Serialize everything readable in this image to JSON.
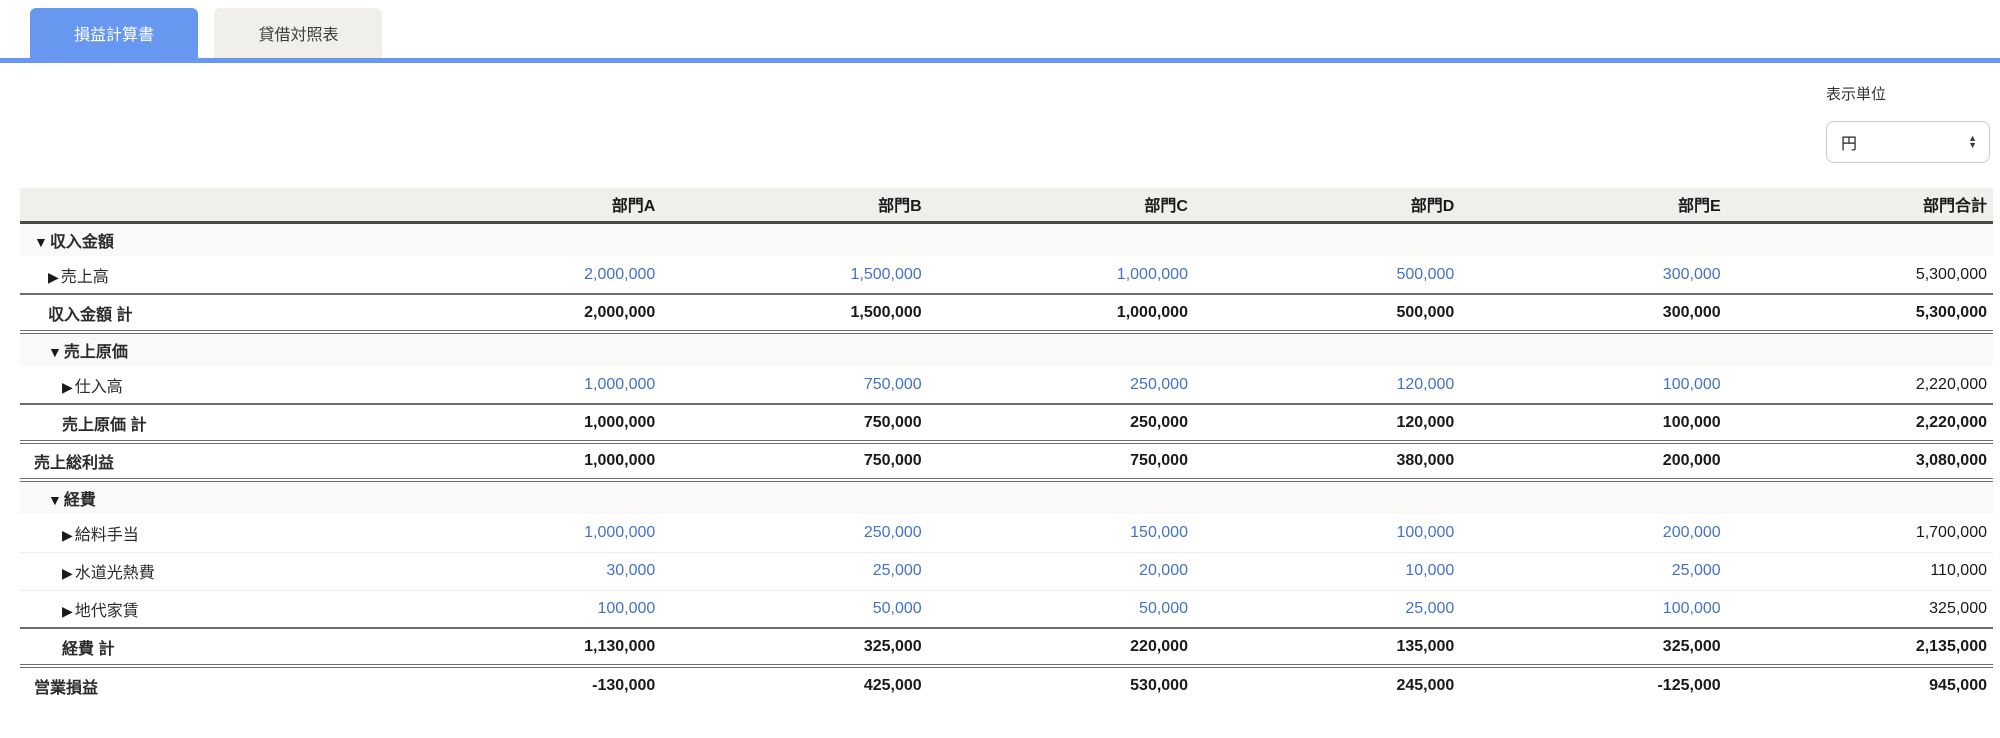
{
  "tabs": [
    {
      "label": "損益計算書",
      "active": true
    },
    {
      "label": "貸借対照表",
      "active": false
    }
  ],
  "unit_selector": {
    "label": "表示単位",
    "value": "円",
    "arrow_up_icon": "▲",
    "arrow_down_icon": "▼"
  },
  "colors": {
    "accent": "#6897f0",
    "link": "#4472c9",
    "header_bg": "#f1efec",
    "section_bg": "#faf9f8"
  },
  "table": {
    "columns": [
      "",
      "部門A",
      "部門B",
      "部門C",
      "部門D",
      "部門E",
      "部門合計"
    ],
    "rows": [
      {
        "type": "section",
        "marker": "▼",
        "label": "収入金額",
        "indent": 0,
        "values": [
          "",
          "",
          "",
          "",
          "",
          ""
        ]
      },
      {
        "type": "item",
        "marker": "▶",
        "label": "売上高",
        "indent": 1,
        "values": [
          "2,000,000",
          "1,500,000",
          "1,000,000",
          "500,000",
          "300,000",
          "5,300,000"
        ]
      },
      {
        "type": "total",
        "marker": "",
        "label": "収入金額 計",
        "indent": 1,
        "values": [
          "2,000,000",
          "1,500,000",
          "1,000,000",
          "500,000",
          "300,000",
          "5,300,000"
        ]
      },
      {
        "type": "section",
        "marker": "▼",
        "label": "売上原価",
        "indent": 1,
        "values": [
          "",
          "",
          "",
          "",
          "",
          ""
        ]
      },
      {
        "type": "item",
        "marker": "▶",
        "label": "仕入高",
        "indent": 2,
        "values": [
          "1,000,000",
          "750,000",
          "250,000",
          "120,000",
          "100,000",
          "2,220,000"
        ]
      },
      {
        "type": "total",
        "marker": "",
        "label": "売上原価 計",
        "indent": 2,
        "values": [
          "1,000,000",
          "750,000",
          "250,000",
          "120,000",
          "100,000",
          "2,220,000"
        ]
      },
      {
        "type": "grand",
        "marker": "",
        "label": "売上総利益",
        "indent": 0,
        "values": [
          "1,000,000",
          "750,000",
          "750,000",
          "380,000",
          "200,000",
          "3,080,000"
        ]
      },
      {
        "type": "section",
        "marker": "▼",
        "label": "経費",
        "indent": 1,
        "values": [
          "",
          "",
          "",
          "",
          "",
          ""
        ]
      },
      {
        "type": "item",
        "marker": "▶",
        "label": "給料手当",
        "indent": 2,
        "values": [
          "1,000,000",
          "250,000",
          "150,000",
          "100,000",
          "200,000",
          "1,700,000"
        ]
      },
      {
        "type": "item",
        "marker": "▶",
        "label": "水道光熱費",
        "indent": 2,
        "values": [
          "30,000",
          "25,000",
          "20,000",
          "10,000",
          "25,000",
          "110,000"
        ]
      },
      {
        "type": "item",
        "marker": "▶",
        "label": "地代家賃",
        "indent": 2,
        "values": [
          "100,000",
          "50,000",
          "50,000",
          "25,000",
          "100,000",
          "325,000"
        ]
      },
      {
        "type": "total",
        "marker": "",
        "label": "経費 計",
        "indent": 2,
        "values": [
          "1,130,000",
          "325,000",
          "220,000",
          "135,000",
          "325,000",
          "2,135,000"
        ]
      },
      {
        "type": "grand",
        "marker": "",
        "label": "営業損益",
        "indent": 0,
        "values": [
          "-130,000",
          "425,000",
          "530,000",
          "245,000",
          "-125,000",
          "945,000"
        ]
      }
    ]
  }
}
